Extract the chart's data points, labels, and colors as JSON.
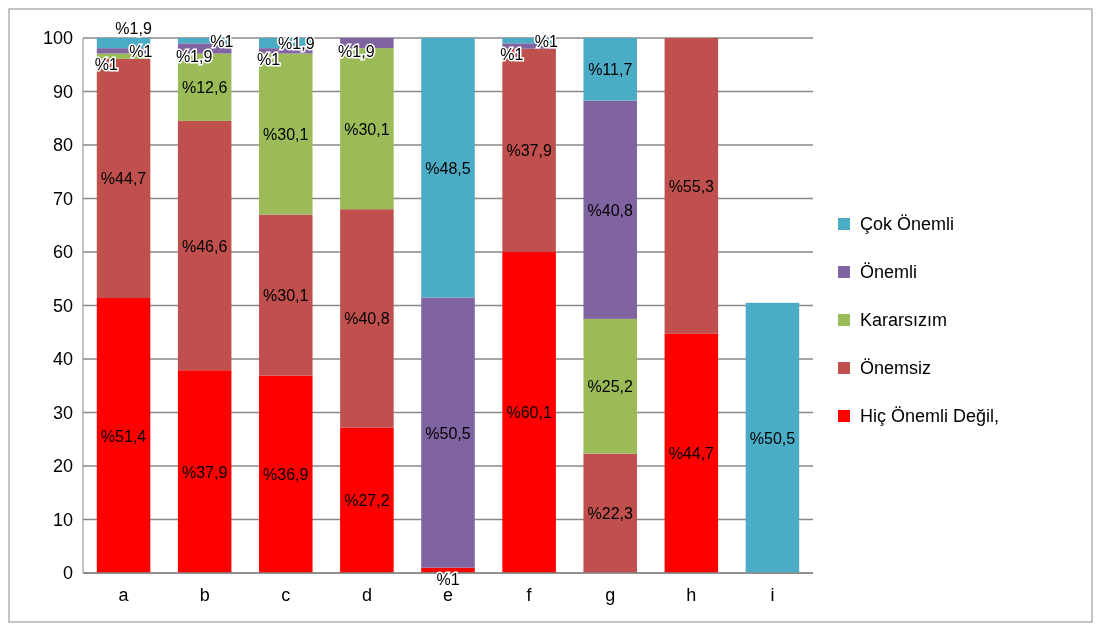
{
  "chart_data": {
    "type": "bar",
    "stacked": true,
    "categories": [
      "a",
      "b",
      "c",
      "d",
      "e",
      "f",
      "g",
      "h",
      "i"
    ],
    "ylim": [
      0,
      100
    ],
    "yticks": [
      0,
      10,
      20,
      30,
      40,
      50,
      60,
      70,
      80,
      90,
      100
    ],
    "grid": "y",
    "legend": "right",
    "series": [
      {
        "name": "Hiç Önemli Değil,",
        "color": "#ff0000",
        "values": [
          51.4,
          37.9,
          36.9,
          27.2,
          1,
          60.1,
          null,
          44.7,
          null
        ],
        "value_labels": [
          "%51,4",
          "%37,9",
          "%36,9",
          "%27,2",
          "%1",
          "%60,1",
          null,
          "%44,7",
          null
        ]
      },
      {
        "name": "Önemsiz",
        "color": "#c0504d",
        "values": [
          44.7,
          46.6,
          30.1,
          40.8,
          null,
          37.9,
          22.3,
          55.3,
          null
        ],
        "value_labels": [
          "%44,7",
          "%46,6",
          "%30,1",
          "%40,8",
          null,
          "%37,9",
          "%22,3",
          "%55,3",
          null
        ]
      },
      {
        "name": "Kararsızım",
        "color": "#9bbb59",
        "values": [
          1,
          12.6,
          30.1,
          30.1,
          null,
          null,
          25.2,
          null,
          null
        ],
        "value_labels": [
          "%1",
          "%12,6",
          "%30,1",
          "%30,1",
          null,
          null,
          "%25,2",
          null,
          null
        ]
      },
      {
        "name": "Önemli",
        "color": "#8064a2",
        "values": [
          1,
          1.9,
          1,
          1.9,
          50.5,
          1,
          40.8,
          null,
          null
        ],
        "value_labels": [
          "%1",
          "%1,9",
          "%1",
          "%1,9",
          "%50,5",
          "%1",
          "%40,8",
          null,
          null
        ]
      },
      {
        "name": "Çok Önemli",
        "color": "#4bacc6",
        "values": [
          1.9,
          1,
          1.9,
          null,
          48.5,
          1,
          11.7,
          null,
          50.5
        ],
        "value_labels": [
          "%1,9",
          "%1",
          "%1,9",
          null,
          "%48,5",
          "%1",
          "%11,7",
          null,
          "%50,5"
        ]
      }
    ]
  }
}
